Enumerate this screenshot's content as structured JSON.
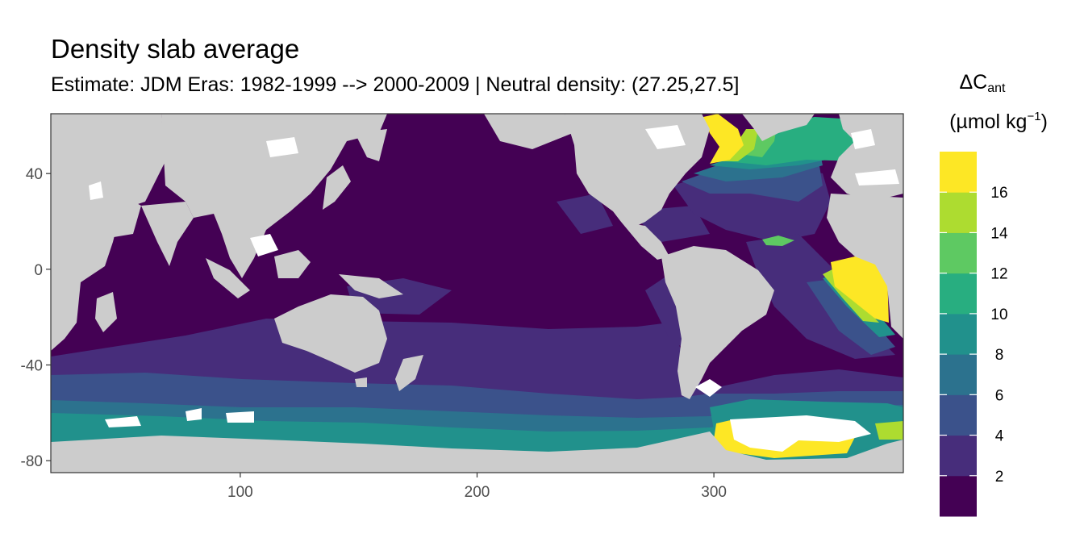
{
  "title": "Density slab average",
  "subtitle": "Estimate: JDM Eras: 1982-1999 --> 2000-2009 | Neutral density: (27.25,27.5]",
  "legend": {
    "title_symbol": "ΔC",
    "title_subscript": "ant",
    "unit_prefix": "(µmol kg",
    "unit_superscript": "−1",
    "unit_suffix": ")",
    "breaks": [
      "2",
      "4",
      "6",
      "8",
      "10",
      "12",
      "14",
      "16"
    ],
    "bin_colors": [
      "#440154",
      "#472d7b",
      "#3b528b",
      "#2c728e",
      "#21918c",
      "#28ae80",
      "#5ec962",
      "#addc30",
      "#fde725"
    ]
  },
  "colors": {
    "land": "#cccccc",
    "missing": "#ffffff",
    "panel_border": "#333333"
  },
  "axes": {
    "x_ticks": [
      "100",
      "200",
      "300"
    ],
    "y_ticks": [
      "40",
      "0",
      "-40",
      "-80"
    ]
  },
  "chart_data": {
    "type": "heatmap",
    "title": "Density slab average",
    "subtitle": "Estimate: JDM Eras: 1982-1999 --> 2000-2009 | Neutral density: (27.25,27.5]",
    "xlabel": "",
    "ylabel": "",
    "xlim": [
      20,
      380
    ],
    "ylim": [
      -85,
      65
    ],
    "x_ticks": [
      100,
      200,
      300
    ],
    "y_ticks": [
      40,
      0,
      -40,
      -80
    ],
    "color_scale": "viridis binned",
    "legend_breaks": [
      2,
      4,
      6,
      8,
      10,
      12,
      14,
      16
    ],
    "regions": [
      {
        "region": "North Pacific / tropical Pacific / Indian Ocean",
        "value": 1
      },
      {
        "region": "Pacific 35–45°S band",
        "value": 3
      },
      {
        "region": "Southern Ocean 45–60°S",
        "value": 5
      },
      {
        "region": "Southern Ocean south of 60°S",
        "value": 7
      },
      {
        "region": "Labrador Sea",
        "value": 17
      },
      {
        "region": "Subpolar North Atlantic",
        "value": 11
      },
      {
        "region": "Eastern tropical Atlantic",
        "value": 17
      },
      {
        "region": "Weddell Sea shelf",
        "value": 17
      }
    ]
  }
}
